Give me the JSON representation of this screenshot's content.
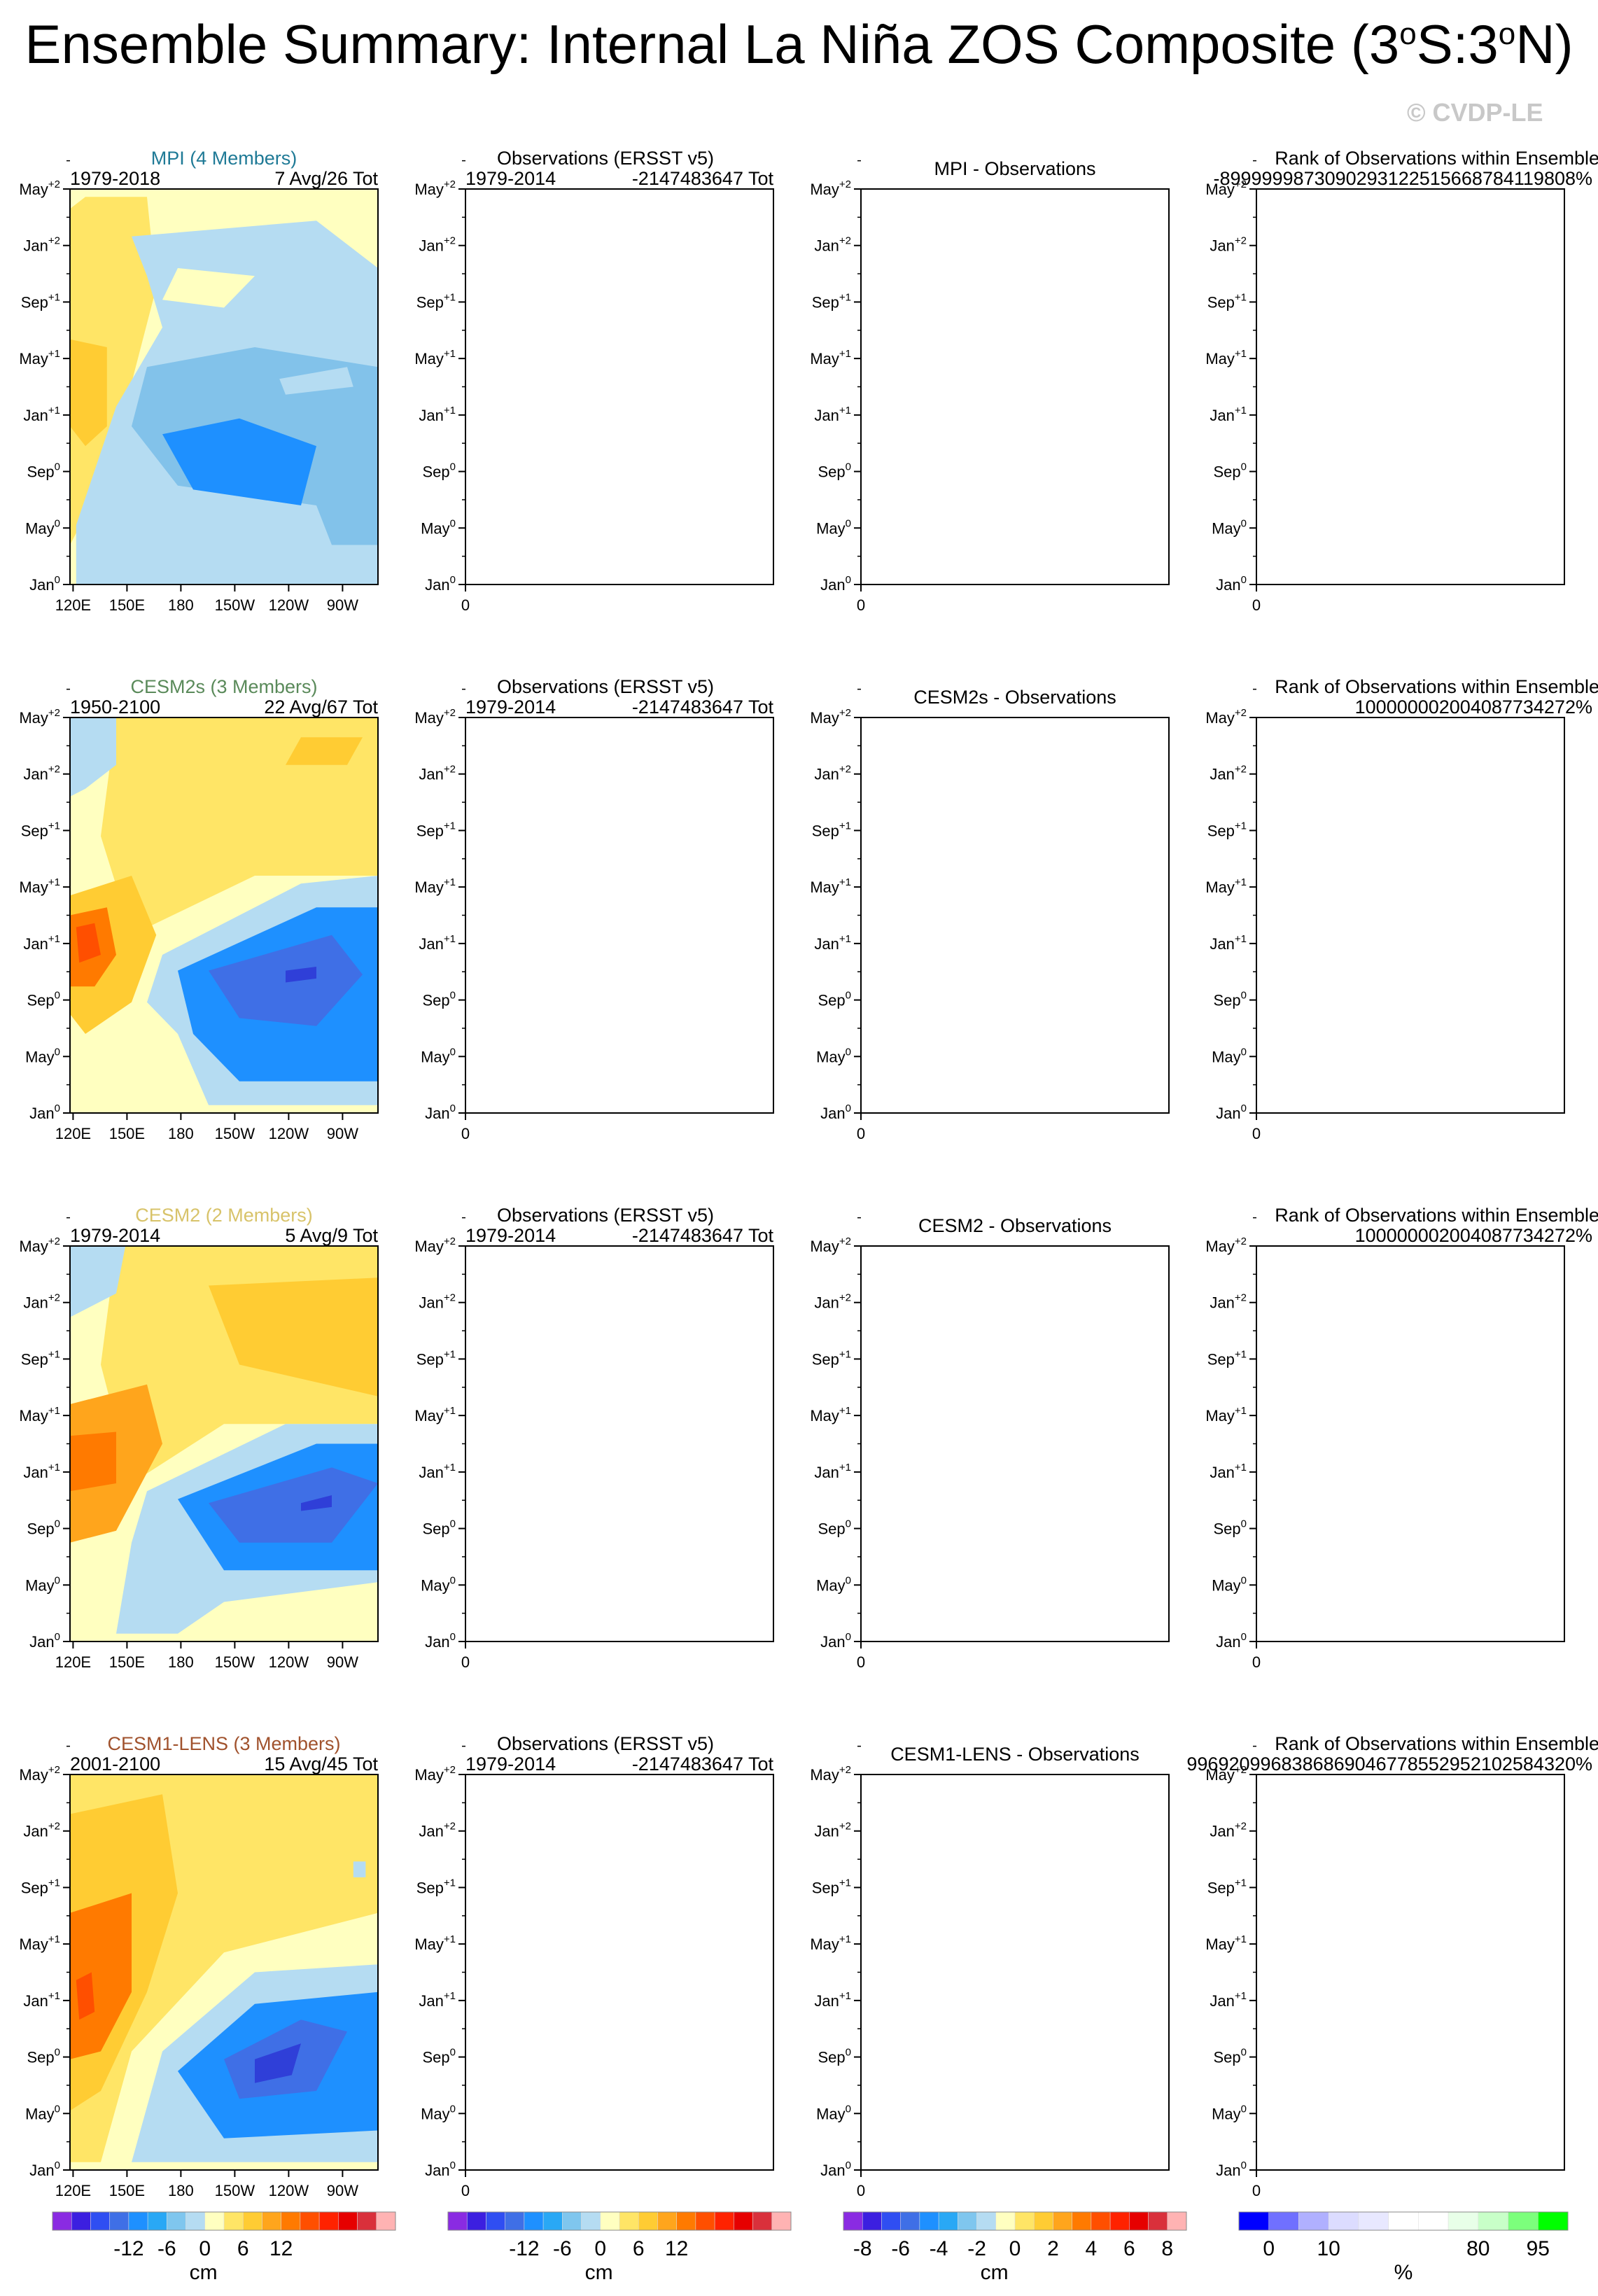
{
  "title_main": "Ensemble Summary: Internal La Niña ZOS Composite (3",
  "title_deg1": "o",
  "title_mid": "S:3",
  "title_deg2": "o",
  "title_end": "N)",
  "watermark": "© CVDP-LE",
  "colors": {
    "model_mpi": "#1f7a96",
    "model_cesm2s": "#5a8a5a",
    "model_cesm2": "#d8c36a",
    "model_cesm1": "#a0522d"
  },
  "rows": [
    {
      "model_title": "MPI (4 Members)",
      "model_years": "1979-2018",
      "model_count": "7 Avg/26 Tot",
      "obs_title": "Observations (ERSST v5)",
      "obs_years": "1979-2014",
      "obs_count": "-2147483647 Tot",
      "diff_title": "MPI - Observations",
      "rank_title": "Rank of Observations within Ensemble",
      "rank_value": "-89999998730902931225156687841198​08%"
    },
    {
      "model_title": "CESM2s (3 Members)",
      "model_years": "1950-2100",
      "model_count": "22 Avg/67 Tot",
      "obs_title": "Observations (ERSST v5)",
      "obs_years": "1979-2014",
      "obs_count": "-2147483647 Tot",
      "diff_title": "CESM2s - Observations",
      "rank_title": "Rank of Observations within Ensemble",
      "rank_value": "100000002004087734272%"
    },
    {
      "model_title": "CESM2 (2 Members)",
      "model_years": "1979-2014",
      "model_count": "5 Avg/9 Tot",
      "obs_title": "Observations (ERSST v5)",
      "obs_years": "1979-2014",
      "obs_count": "-2147483647 Tot",
      "diff_title": "CESM2 - Observations",
      "rank_title": "Rank of Observations within Ensemble",
      "rank_value": "100000002004087734272%"
    },
    {
      "model_title": "CESM1-LENS (3 Members)",
      "model_years": "2001-2100",
      "model_count": "15 Avg/45 Tot",
      "obs_title": "Observations (ERSST v5)",
      "obs_years": "1979-2014",
      "obs_count": "-2147483647 Tot",
      "diff_title": "CESM1-LENS - Observations",
      "rank_title": "Rank of Observations within Ensemble",
      "rank_value": "996920996838686904677855295210258432​0%"
    }
  ],
  "chart_data": {
    "type": "heatmap",
    "title": "Ensemble Summary: Internal La Niña ZOS Composite (3°S:3°N)",
    "y_ticks": [
      "Jan",
      "May",
      "Sep",
      "Jan",
      "May",
      "Sep",
      "Jan",
      "May"
    ],
    "y_ticks_sup": [
      "0",
      "0",
      "0",
      "+1",
      "+1",
      "+1",
      "+2",
      "+2"
    ],
    "x_ticks": [
      "120E",
      "150E",
      "180",
      "150W",
      "120W",
      "90W"
    ],
    "x_ticks_obs": [
      "0"
    ],
    "colorbars": [
      {
        "unit": "cm",
        "tick_labels": [
          "-12",
          "-6",
          "0",
          "6",
          "12"
        ],
        "colors": [
          "#8a2be2",
          "#3c1fe0",
          "#2f4ef2",
          "#3f6fe6",
          "#1e90ff",
          "#29a8f5",
          "#7fc6ee",
          "#b5dcf2",
          "#ffffc0",
          "#ffe566",
          "#ffcc33",
          "#ffa51c",
          "#ff7a00",
          "#ff4f00",
          "#ff2200",
          "#e60000",
          "#d9303b",
          "#ffb3b3"
        ]
      },
      {
        "unit": "cm",
        "tick_labels": [
          "-12",
          "-6",
          "0",
          "6",
          "12"
        ],
        "colors": [
          "#8a2be2",
          "#3c1fe0",
          "#2f4ef2",
          "#3f6fe6",
          "#1e90ff",
          "#29a8f5",
          "#7fc6ee",
          "#b5dcf2",
          "#ffffc0",
          "#ffe566",
          "#ffcc33",
          "#ffa51c",
          "#ff7a00",
          "#ff4f00",
          "#ff2200",
          "#e60000",
          "#d9303b",
          "#ffb3b3"
        ]
      },
      {
        "unit": "cm",
        "tick_labels": [
          "-8",
          "-6",
          "-4",
          "-2",
          "0",
          "2",
          "4",
          "6",
          "8"
        ],
        "colors": [
          "#8a2be2",
          "#3c1fe0",
          "#2f4ef2",
          "#3f6fe6",
          "#1e90ff",
          "#29a8f5",
          "#7fc6ee",
          "#b5dcf2",
          "#ffffc0",
          "#ffe566",
          "#ffcc33",
          "#ffa51c",
          "#ff7a00",
          "#ff4f00",
          "#ff2200",
          "#e60000",
          "#d9303b",
          "#ffb3b3"
        ]
      },
      {
        "unit": "%",
        "tick_labels": [
          "0",
          "10",
          "80",
          "95"
        ],
        "colors": [
          "#0000ff",
          "#7070ff",
          "#b0b0ff",
          "#dcdcff",
          "#e8e8ff",
          "#ffffff",
          "#ffffff",
          "#e8ffe8",
          "#c8ffc8",
          "#7cff7c",
          "#00ff00"
        ]
      }
    ]
  }
}
